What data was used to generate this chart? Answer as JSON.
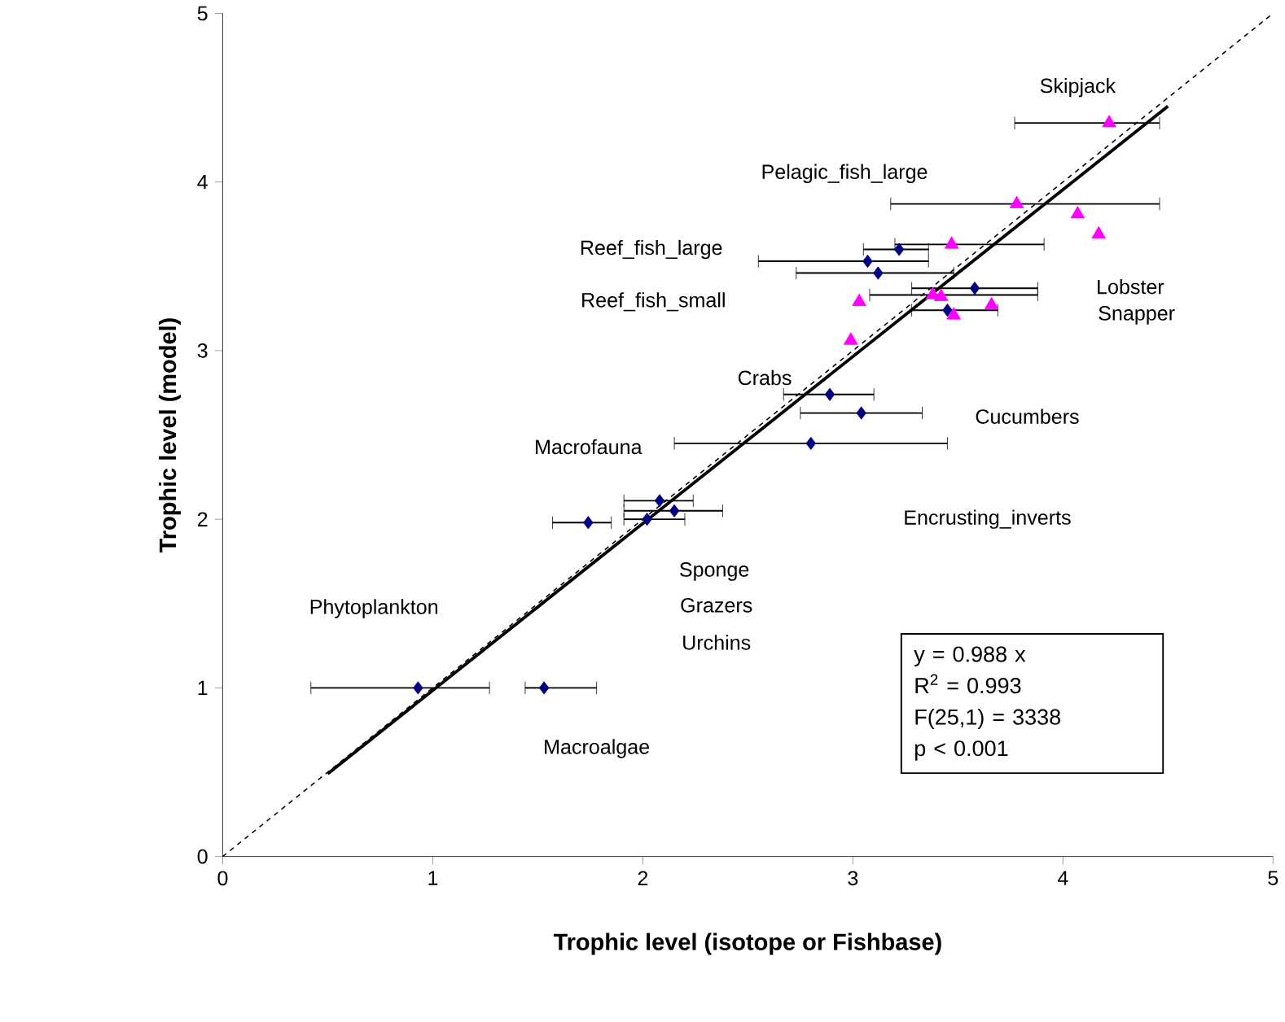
{
  "chart_data": {
    "type": "scatter",
    "xlabel": "Trophic level (isotope or Fishbase)",
    "ylabel": "Trophic level (model)",
    "xlim": [
      0,
      5
    ],
    "ylim": [
      0,
      5
    ],
    "xticks": [
      0,
      1,
      2,
      3,
      4,
      5
    ],
    "yticks": [
      0,
      1,
      2,
      3,
      4,
      5
    ],
    "grid": false,
    "series": [
      {
        "marker": "diamond",
        "color": "#000080",
        "x": [
          0.93,
          1.53,
          1.74,
          2.02,
          2.08,
          2.15,
          2.8,
          3.04,
          2.89,
          3.22,
          3.07,
          3.12,
          3.58,
          3.45
        ],
        "values": [
          1.0,
          1.0,
          1.98,
          2.0,
          2.11,
          2.05,
          2.45,
          2.63,
          2.74,
          3.6,
          3.53,
          3.46,
          3.37,
          3.24
        ],
        "xerrors": [
          [
            0.42,
            1.27
          ],
          [
            1.44,
            1.78
          ],
          [
            1.57,
            1.85
          ],
          [
            1.91,
            2.2
          ],
          [
            1.91,
            2.24
          ],
          [
            1.91,
            2.38
          ],
          [
            2.15,
            3.45
          ],
          [
            2.75,
            3.33
          ],
          [
            2.67,
            3.1
          ],
          [
            3.05,
            3.36
          ],
          [
            2.55,
            3.36
          ],
          [
            2.73,
            3.48
          ],
          [
            3.28,
            3.88
          ],
          [
            3.28,
            3.69
          ]
        ]
      },
      {
        "marker": "triangle",
        "color": "#ff00ff",
        "x": [
          4.22,
          3.78,
          3.47,
          4.07,
          4.17,
          3.38,
          3.42,
          3.03,
          2.99,
          3.48,
          3.66
        ],
        "values": [
          4.35,
          3.87,
          3.63,
          3.81,
          3.69,
          3.33,
          3.32,
          3.29,
          3.06,
          3.21,
          3.27
        ],
        "xerrors": [
          [
            3.77,
            4.46
          ],
          [
            3.18,
            4.46
          ],
          [
            3.2,
            3.91
          ],
          null,
          null,
          [
            3.08,
            3.88
          ],
          null,
          null,
          null,
          null,
          null
        ]
      },
      {
        "type": "line",
        "color": "#000000",
        "line_style": "solid",
        "x": [
          0.5,
          4.5
        ],
        "values": [
          0.49,
          4.45
        ]
      },
      {
        "type": "line",
        "color": "#000000",
        "line_style": "dashed",
        "x": [
          0,
          5
        ],
        "values": [
          0,
          5
        ]
      }
    ],
    "annotations": [
      "Skipjack",
      "Pelagic_fish_large",
      "Reef_fish_large",
      "Reef_fish_small",
      "Lobster",
      "Snapper",
      "Crabs",
      "Cucumbers",
      "Macrofauna",
      "Encrusting_inverts",
      "Sponge",
      "Grazers",
      "Urchins",
      "Phytoplankton",
      "Macroalgae",
      "y = 0.988 x",
      "R$^{2}$ = 0.993",
      "F(25,1) = 3338",
      "p < 0.001"
    ]
  }
}
